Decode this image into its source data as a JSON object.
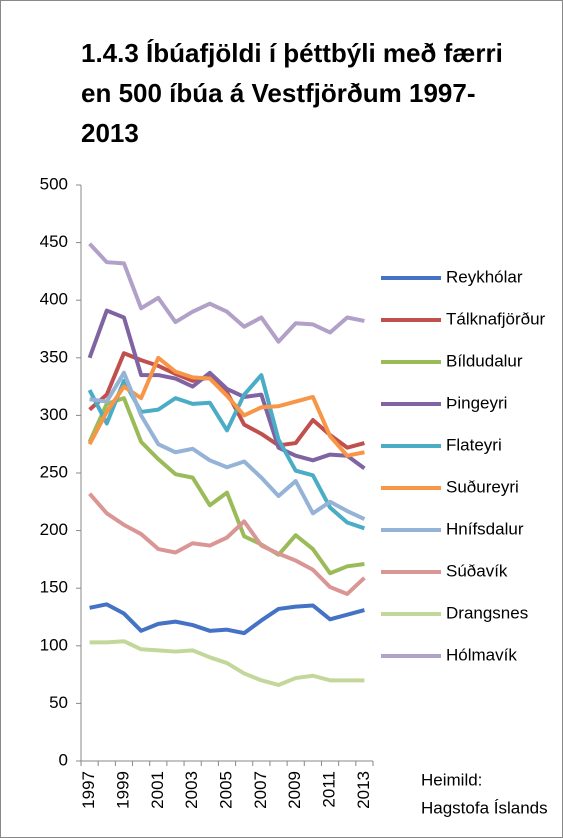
{
  "chart_data": {
    "type": "line",
    "title": "1.4.3 Íbúafjöldi í þéttbýli með færri en 500 íbúa á Vestfjörðum 1997-2013",
    "categories": [
      "1997",
      null,
      "1999",
      null,
      "2001",
      null,
      "2003",
      null,
      "2005",
      null,
      "2007",
      null,
      "2009",
      null,
      "2011",
      null,
      "2013"
    ],
    "ylim": [
      0,
      500
    ],
    "yticks": [
      0,
      50,
      100,
      150,
      200,
      250,
      300,
      350,
      400,
      450,
      500
    ],
    "grid": false,
    "legend": "right",
    "source": [
      "Heimild:",
      "Hagstofa Íslands"
    ],
    "series": [
      {
        "name": "Reykhólar",
        "color": "#4472c4",
        "values": [
          133,
          136,
          128,
          113,
          119,
          121,
          118,
          113,
          114,
          111,
          122,
          132,
          134,
          135,
          123,
          127,
          131
        ]
      },
      {
        "name": "Tálknafjörður",
        "color": "#c0504d",
        "values": [
          305,
          318,
          354,
          348,
          343,
          336,
          330,
          333,
          320,
          292,
          284,
          274,
          276,
          296,
          283,
          272,
          276
        ]
      },
      {
        "name": "Bíldudalur",
        "color": "#9bbb59",
        "values": [
          277,
          310,
          315,
          277,
          262,
          249,
          246,
          222,
          233,
          195,
          188,
          179,
          196,
          184,
          163,
          169,
          171
        ]
      },
      {
        "name": "Þingeyri",
        "color": "#8064a2",
        "values": [
          350,
          391,
          385,
          335,
          335,
          332,
          325,
          337,
          323,
          316,
          318,
          272,
          265,
          261,
          266,
          265,
          254
        ]
      },
      {
        "name": "Flateyri",
        "color": "#4bacc6",
        "values": [
          322,
          293,
          330,
          303,
          305,
          315,
          310,
          311,
          287,
          318,
          335,
          279,
          252,
          248,
          220,
          207,
          202
        ]
      },
      {
        "name": "Suðureyri",
        "color": "#f79646",
        "values": [
          275,
          303,
          325,
          315,
          350,
          338,
          333,
          332,
          317,
          300,
          307,
          308,
          312,
          316,
          282,
          265,
          268
        ]
      },
      {
        "name": "Hnífsdalur",
        "color": "#95b3d7",
        "values": [
          314,
          312,
          337,
          300,
          275,
          268,
          271,
          261,
          255,
          260,
          246,
          230,
          243,
          215,
          225,
          217,
          210
        ]
      },
      {
        "name": "Súðavík",
        "color": "#da9694",
        "values": [
          232,
          215,
          205,
          197,
          184,
          181,
          189,
          187,
          194,
          208,
          187,
          180,
          174,
          166,
          151,
          145,
          159
        ]
      },
      {
        "name": "Drangsnes",
        "color": "#c4d79b",
        "values": [
          103,
          103,
          104,
          97,
          96,
          95,
          96,
          90,
          85,
          76,
          70,
          66,
          72,
          74,
          70,
          70,
          70
        ]
      },
      {
        "name": "Hólmavík",
        "color": "#b1a0c7",
        "values": [
          449,
          433,
          432,
          393,
          402,
          381,
          390,
          397,
          390,
          377,
          385,
          364,
          380,
          379,
          372,
          385,
          382
        ]
      }
    ]
  }
}
